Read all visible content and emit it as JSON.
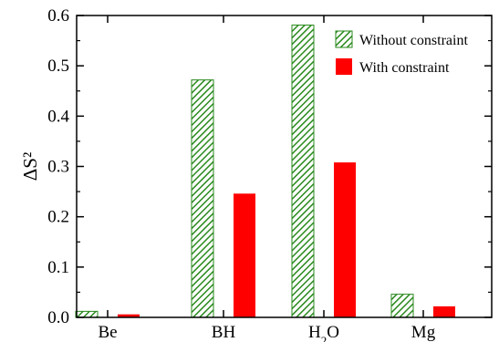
{
  "chart_data": {
    "type": "bar",
    "categories": [
      "Be",
      "BH",
      "H2O",
      "Mg"
    ],
    "series": [
      {
        "name": "Without constraint",
        "values": [
          0.012,
          0.472,
          0.581,
          0.046
        ],
        "color": "#2a8a1e",
        "pattern": "diagonal-hatch"
      },
      {
        "name": "With constraint",
        "values": [
          0.006,
          0.246,
          0.308,
          0.022
        ],
        "color": "#ff0000",
        "pattern": "solid"
      }
    ],
    "ylabel": "ΔS²",
    "ylim": [
      0,
      0.6
    ],
    "yticks": [
      "0.0",
      "0.1",
      "0.2",
      "0.3",
      "0.4",
      "0.5",
      "0.6"
    ],
    "legend_position": "top-right",
    "grid": false
  }
}
